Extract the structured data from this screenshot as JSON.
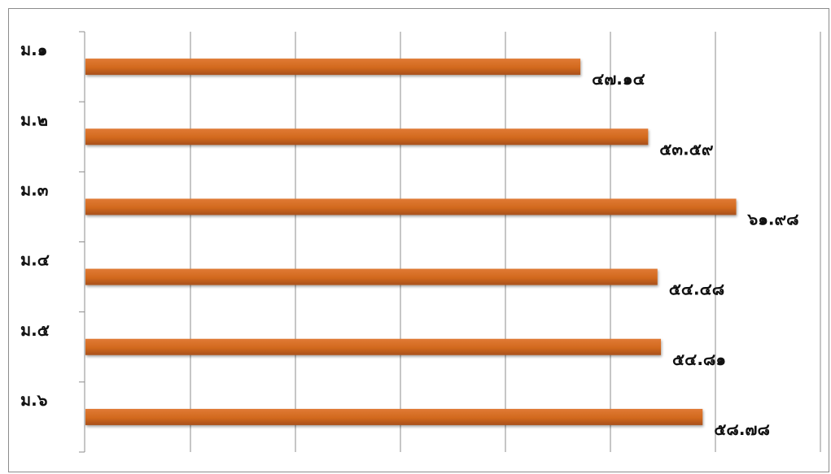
{
  "chart_data": {
    "type": "bar",
    "orientation": "horizontal",
    "categories": [
      "ม.๑",
      "ม.๒",
      "ม.๓",
      "ม.๔",
      "ม.๕",
      "ม.๖"
    ],
    "values": [
      47.14,
      53.59,
      61.98,
      54.48,
      54.81,
      58.78
    ],
    "value_labels": [
      "๔๗.๑๔",
      "๕๓.๕๙",
      "๖๑.๙๘",
      "๕๔.๔๘",
      "๕๔.๘๑",
      "๕๘.๗๘"
    ],
    "title": "",
    "xlabel": "",
    "ylabel": "",
    "xlim": [
      0,
      70
    ],
    "grid": true,
    "legend": "none",
    "bar_color": "#d2691e",
    "bar_color_dark": "#a8501a",
    "gridline_color": "#8c8c8c"
  }
}
